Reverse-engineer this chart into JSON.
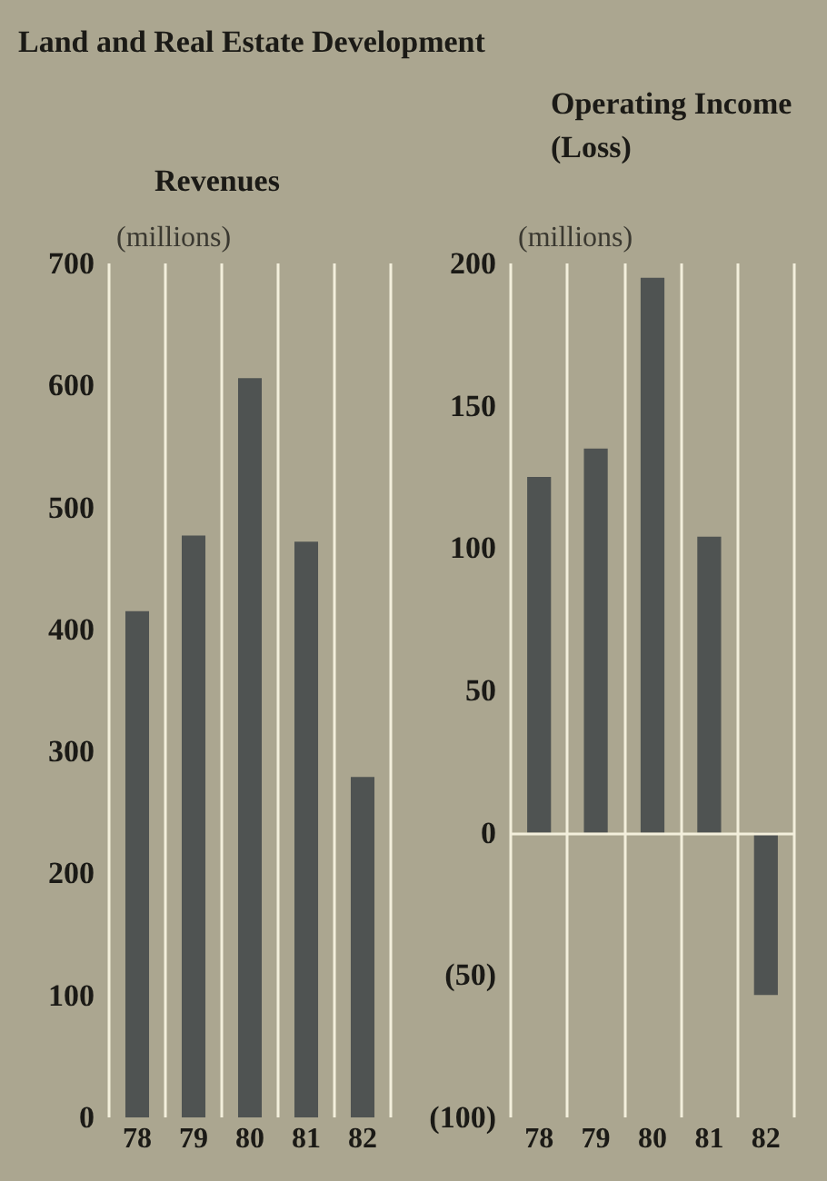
{
  "chart_data": [
    {
      "type": "bar",
      "title": "Land and Real Estate Development",
      "subtitle": "Revenues",
      "ylabel": "(millions)",
      "categories": [
        "78",
        "79",
        "80",
        "81",
        "82"
      ],
      "values": [
        415,
        477,
        606,
        472,
        279
      ],
      "color": "#4f5352",
      "ylim": [
        0,
        700
      ],
      "yticks": [
        0,
        100,
        200,
        300,
        400,
        500,
        600,
        700
      ],
      "grid": "x"
    },
    {
      "type": "bar",
      "title": "Operating Income (Loss)",
      "ylabel": "(millions)",
      "categories": [
        "78",
        "79",
        "80",
        "81",
        "82"
      ],
      "values": [
        125,
        135,
        195,
        104,
        -57
      ],
      "color": "#4f5352",
      "ylim": [
        -100,
        200
      ],
      "yticks": [
        {
          "value": -100,
          "label": "(100)"
        },
        {
          "value": -50,
          "label": "(50)"
        },
        0,
        50,
        100,
        150,
        200
      ],
      "grid": "x",
      "ref_lines": [
        {
          "axis": "y",
          "value": 0,
          "color": "#f3efdc"
        }
      ]
    }
  ]
}
